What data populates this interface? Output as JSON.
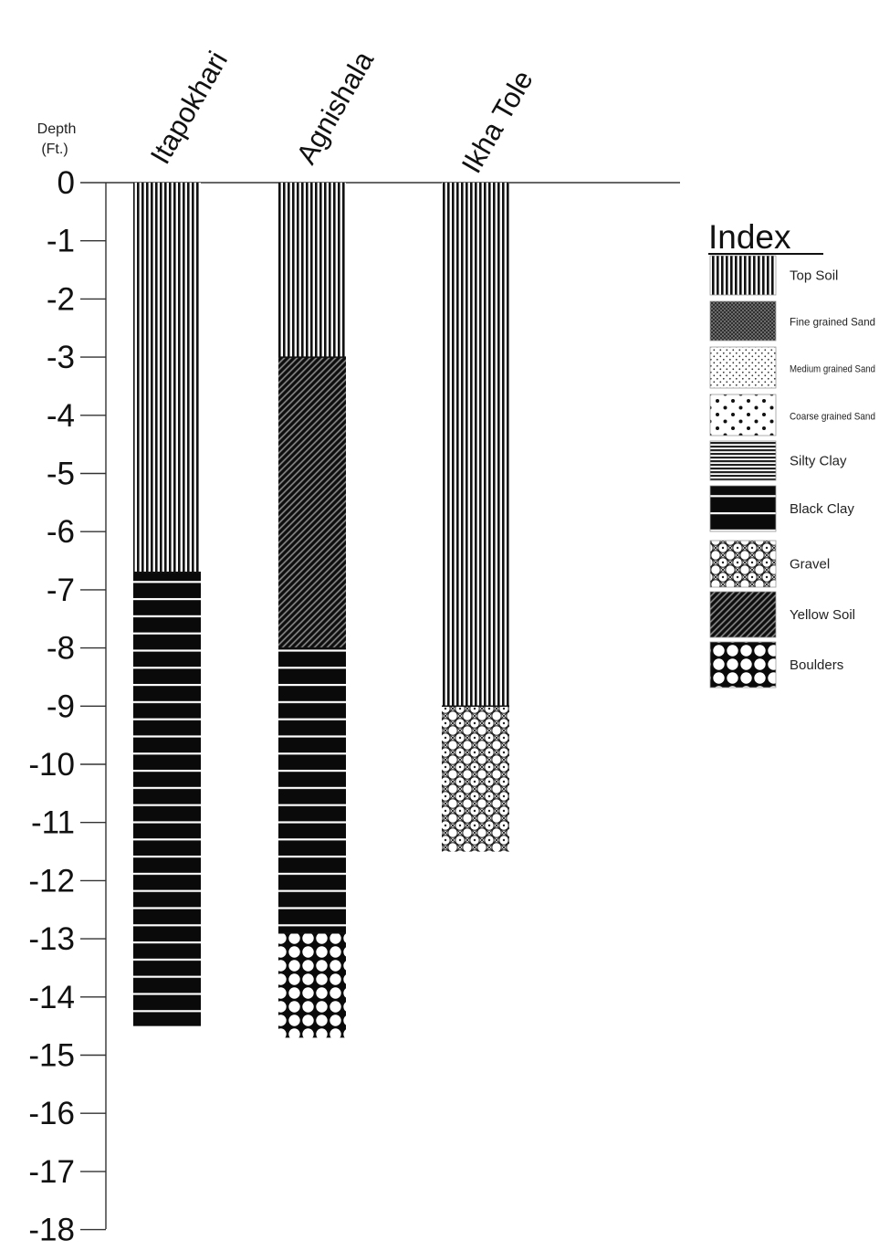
{
  "chart_data": {
    "type": "stratigraphic-column",
    "ylabel": [
      "Depth",
      "(Ft.)"
    ],
    "ylim": [
      -18,
      0
    ],
    "yticks": [
      0,
      -1,
      -2,
      -3,
      -4,
      -5,
      -6,
      -7,
      -8,
      -9,
      -10,
      -11,
      -12,
      -13,
      -14,
      -15,
      -16,
      -17,
      -18
    ],
    "columns": [
      {
        "name": "Itapokhari",
        "layers": [
          {
            "material": "top-soil",
            "top": 0,
            "bottom": -6.7
          },
          {
            "material": "black-clay",
            "top": -6.7,
            "bottom": -14.5
          }
        ]
      },
      {
        "name": "Agnishala",
        "layers": [
          {
            "material": "top-soil",
            "top": 0,
            "bottom": -3
          },
          {
            "material": "yellow-soil",
            "top": -3,
            "bottom": -8
          },
          {
            "material": "black-clay",
            "top": -8,
            "bottom": -12.9
          },
          {
            "material": "boulders",
            "top": -12.9,
            "bottom": -14.7
          }
        ]
      },
      {
        "name": "Ikha Tole",
        "layers": [
          {
            "material": "top-soil",
            "top": 0,
            "bottom": -9
          },
          {
            "material": "gravel",
            "top": -9,
            "bottom": -11.5
          }
        ]
      }
    ]
  },
  "legend": {
    "title": "Index",
    "items": [
      {
        "material": "top-soil",
        "label": "Top Soil"
      },
      {
        "material": "fine-grained-sand",
        "label": "Fine grained Sand"
      },
      {
        "material": "medium-grained-sand",
        "label": "Medium grained Sand"
      },
      {
        "material": "coarse-grained-sand",
        "label": "Coarse grained Sand"
      },
      {
        "material": "silty-clay",
        "label": "Silty Clay"
      },
      {
        "material": "black-clay",
        "label": "Black Clay"
      },
      {
        "material": "gravel",
        "label": "Gravel"
      },
      {
        "material": "yellow-soil",
        "label": "Yellow Soil"
      },
      {
        "material": "boulders",
        "label": "Boulders"
      }
    ]
  }
}
